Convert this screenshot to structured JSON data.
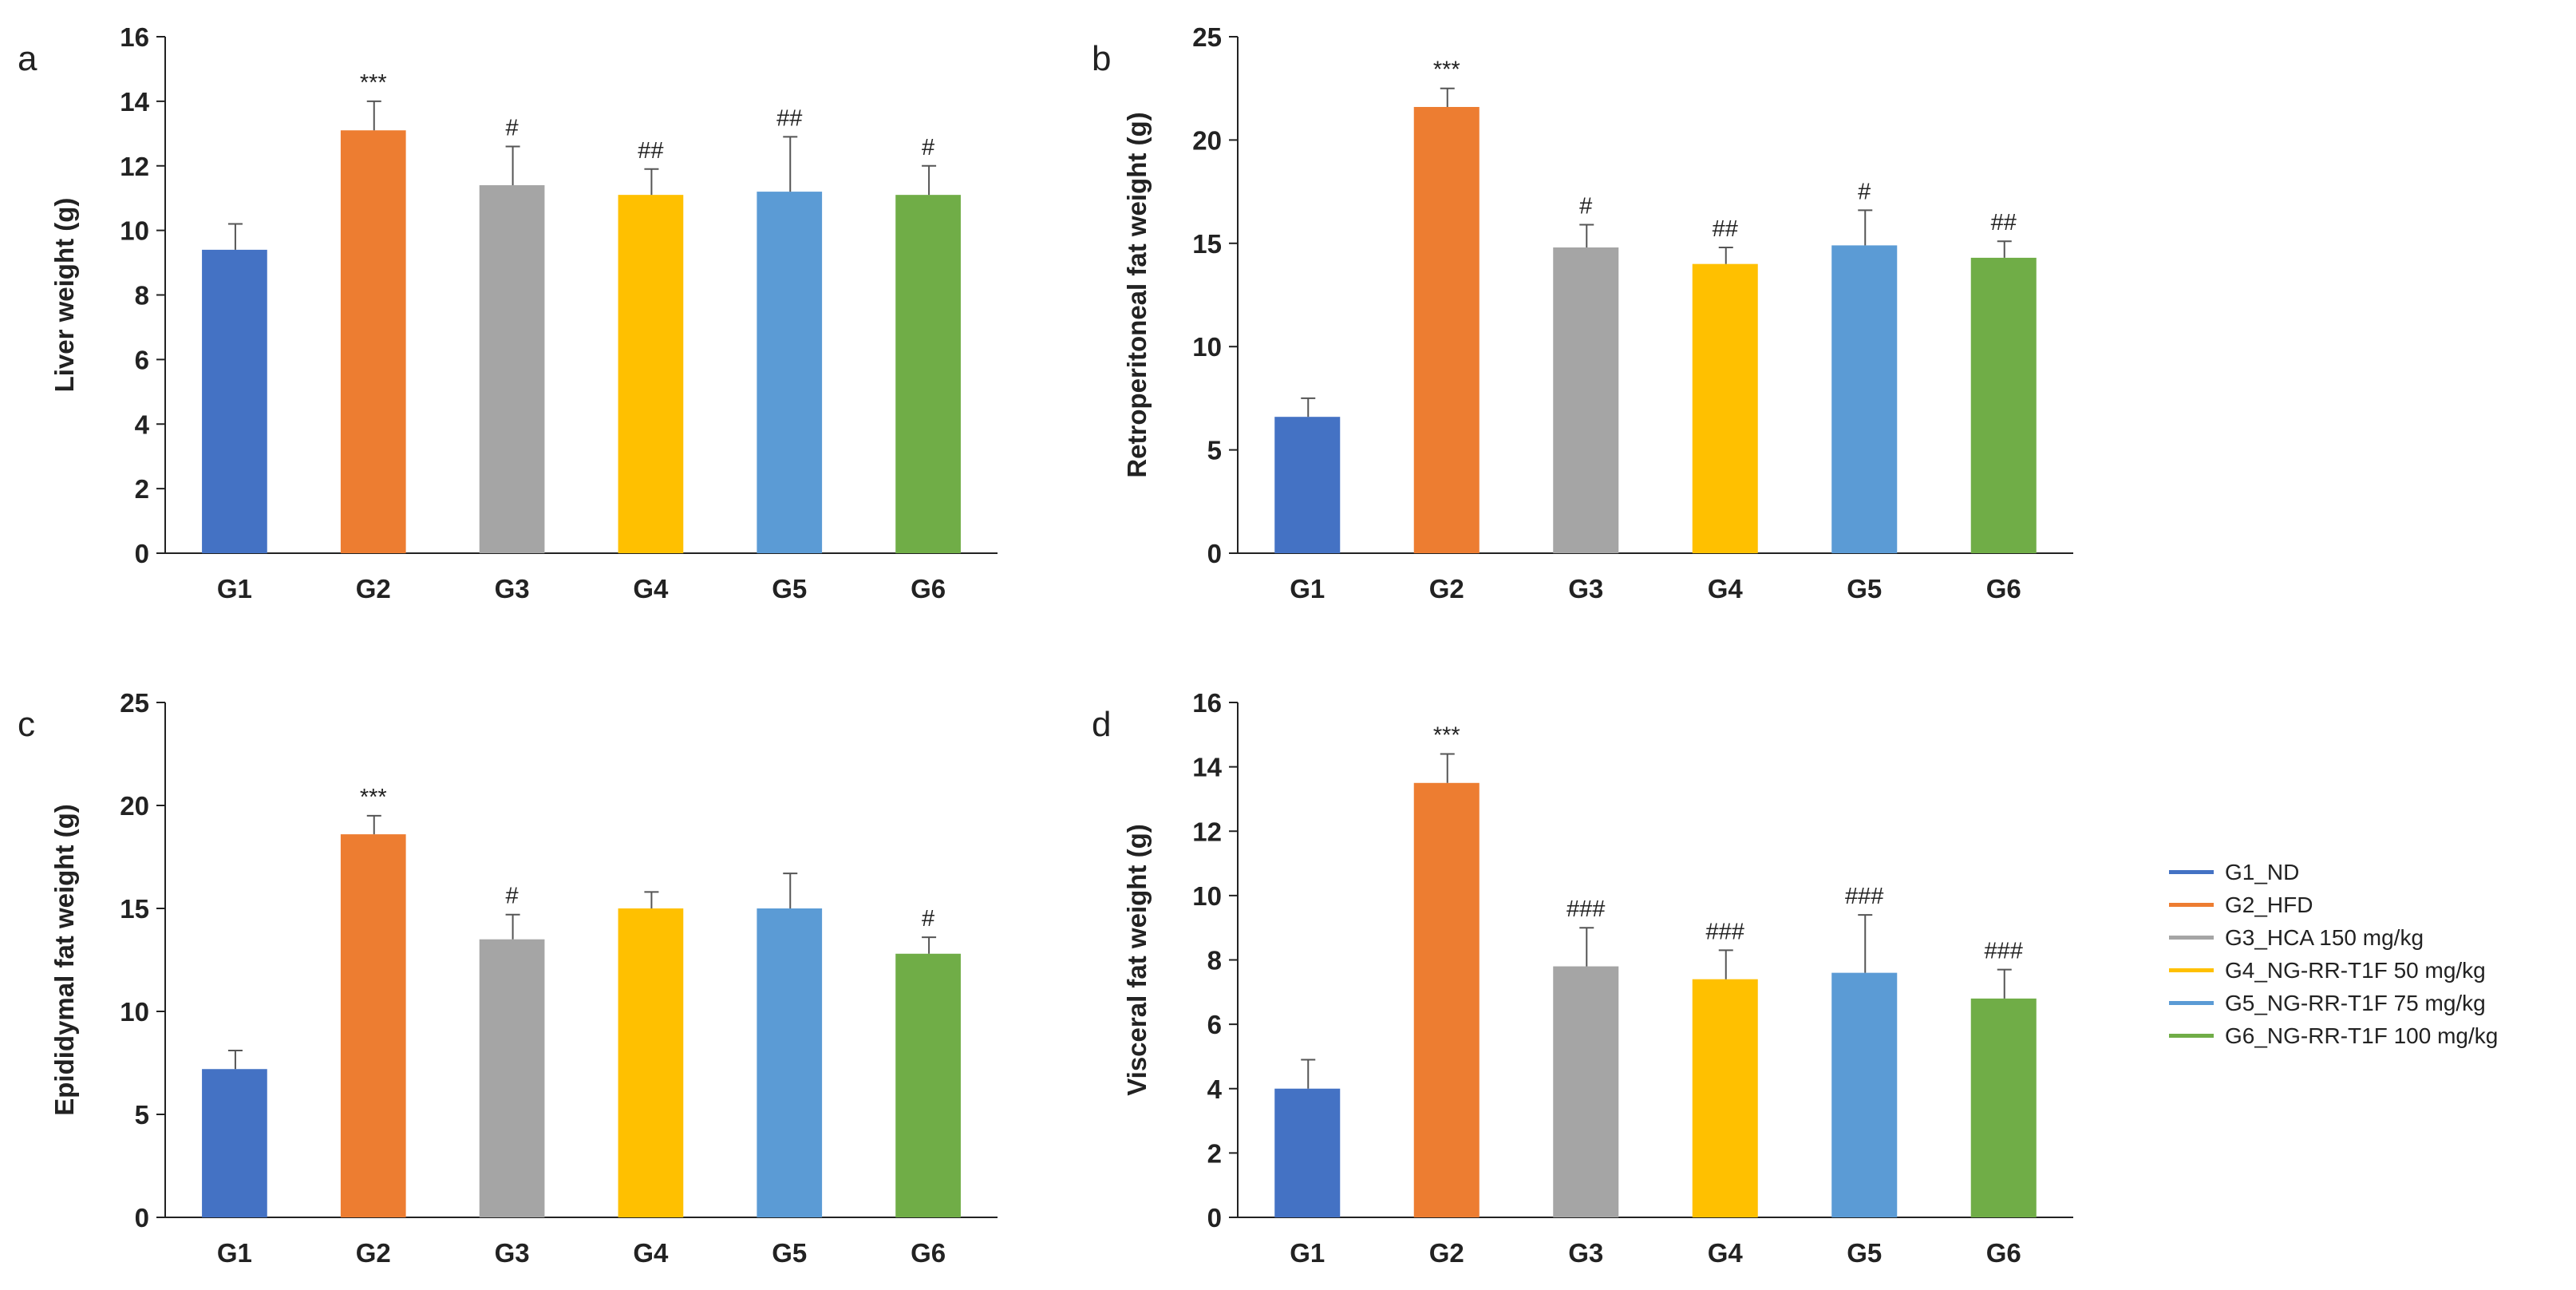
{
  "chart_data": [
    {
      "type": "bar",
      "panel": "a",
      "ylabel": "Liver weight (g)",
      "xlabel": "",
      "ylim": [
        0,
        16
      ],
      "yticks": [
        0,
        2,
        4,
        6,
        8,
        10,
        12,
        14,
        16
      ],
      "categories": [
        "G1",
        "G2",
        "G3",
        "G4",
        "G5",
        "G6"
      ],
      "values": [
        9.4,
        13.1,
        11.4,
        11.1,
        11.2,
        11.1
      ],
      "errors": [
        0.8,
        0.9,
        1.2,
        0.8,
        1.7,
        0.9
      ],
      "annotations": [
        "",
        "***",
        "#",
        "##",
        "##",
        "#"
      ]
    },
    {
      "type": "bar",
      "panel": "b",
      "ylabel": "Retroperitoneal fat weight (g)",
      "xlabel": "",
      "ylim": [
        0,
        25
      ],
      "yticks": [
        0,
        5,
        10,
        15,
        20,
        25
      ],
      "categories": [
        "G1",
        "G2",
        "G3",
        "G4",
        "G5",
        "G6"
      ],
      "values": [
        6.6,
        21.6,
        14.8,
        14.0,
        14.9,
        14.3
      ],
      "errors": [
        0.9,
        0.9,
        1.1,
        0.8,
        1.7,
        0.8
      ],
      "annotations": [
        "",
        "***",
        "#",
        "##",
        "#",
        "##"
      ]
    },
    {
      "type": "bar",
      "panel": "c",
      "ylabel": "Epididymal fat weight (g)",
      "xlabel": "",
      "ylim": [
        0,
        25
      ],
      "yticks": [
        0,
        5,
        10,
        15,
        20,
        25
      ],
      "categories": [
        "G1",
        "G2",
        "G3",
        "G4",
        "G5",
        "G6"
      ],
      "values": [
        7.2,
        18.6,
        13.5,
        15.0,
        15.0,
        12.8
      ],
      "errors": [
        0.9,
        0.9,
        1.2,
        0.8,
        1.7,
        0.8
      ],
      "annotations": [
        "",
        "***",
        "#",
        "",
        "",
        "#"
      ]
    },
    {
      "type": "bar",
      "panel": "d",
      "ylabel": "Visceral fat weight (g)",
      "xlabel": "",
      "ylim": [
        0,
        16
      ],
      "yticks": [
        0,
        2,
        4,
        6,
        8,
        10,
        12,
        14,
        16
      ],
      "categories": [
        "G1",
        "G2",
        "G3",
        "G4",
        "G5",
        "G6"
      ],
      "values": [
        4.0,
        13.5,
        7.8,
        7.4,
        7.6,
        6.8
      ],
      "errors": [
        0.9,
        0.9,
        1.2,
        0.9,
        1.8,
        0.9
      ],
      "annotations": [
        "",
        "***",
        "###",
        "###",
        "###",
        "###"
      ]
    }
  ],
  "bar_colors": [
    "#4472C4",
    "#ED7D31",
    "#A5A5A5",
    "#FFC000",
    "#5B9BD5",
    "#70AD47"
  ],
  "legend": [
    {
      "label": "G1_ND",
      "color": "#4472C4"
    },
    {
      "label": "G2_HFD",
      "color": "#ED7D31"
    },
    {
      "label": "G3_HCA 150 mg/kg",
      "color": "#A5A5A5"
    },
    {
      "label": "G4_NG-RR-T1F 50 mg/kg",
      "color": "#FFC000"
    },
    {
      "label": "G5_NG-RR-T1F 75 mg/kg",
      "color": "#5B9BD5"
    },
    {
      "label": "G6_NG-RR-T1F 100 mg/kg",
      "color": "#70AD47"
    }
  ]
}
